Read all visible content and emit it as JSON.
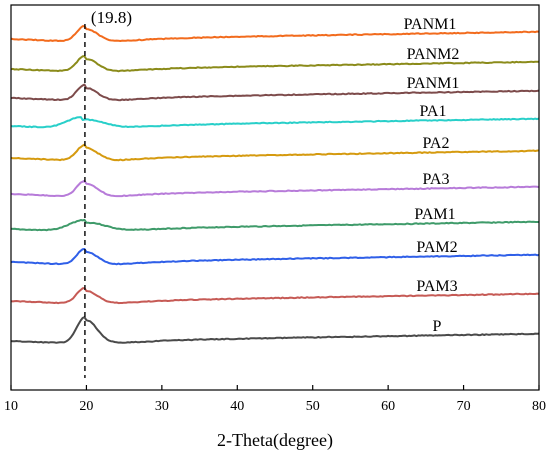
{
  "chart_data": {
    "type": "line",
    "xlabel": "2-Theta(degree)",
    "ylabel": "",
    "xlim": [
      10,
      80
    ],
    "x_ticks": [
      "10",
      "20",
      "30",
      "40",
      "50",
      "60",
      "70",
      "80"
    ],
    "y_ticks": "none",
    "grid": false,
    "legend": "none",
    "annotation": {
      "text": "(19.8)",
      "x": 19.8,
      "style": "dashed vertical line"
    },
    "series": [
      {
        "name": "PANM1",
        "color": "#f26b1d",
        "peak_x": 19.8,
        "shape": "sharp"
      },
      {
        "name": "PANM2",
        "color": "#8b8b1a",
        "peak_x": 19.8,
        "shape": "sharp"
      },
      {
        "name": "PANM1",
        "color": "#7d4b4b",
        "peak_x": 19.8,
        "shape": "sharp"
      },
      {
        "name": "PA1",
        "color": "#28cfc9",
        "peak_x": 19.5,
        "shape": "broad"
      },
      {
        "name": "PA2",
        "color": "#d59a0f",
        "peak_x": 19.8,
        "shape": "sharp"
      },
      {
        "name": "PA3",
        "color": "#b77bd9",
        "peak_x": 19.8,
        "shape": "sharp"
      },
      {
        "name": "PAM1",
        "color": "#3f9b6a",
        "peak_x": 19.8,
        "shape": "broad"
      },
      {
        "name": "PAM2",
        "color": "#2f5fe8",
        "peak_x": 19.8,
        "shape": "sharp"
      },
      {
        "name": "PAM3",
        "color": "#c65a55",
        "peak_x": 19.8,
        "shape": "sharp"
      },
      {
        "name": "P",
        "color": "#4a4a4a",
        "peak_x": 19.8,
        "shape": "tall"
      }
    ]
  }
}
